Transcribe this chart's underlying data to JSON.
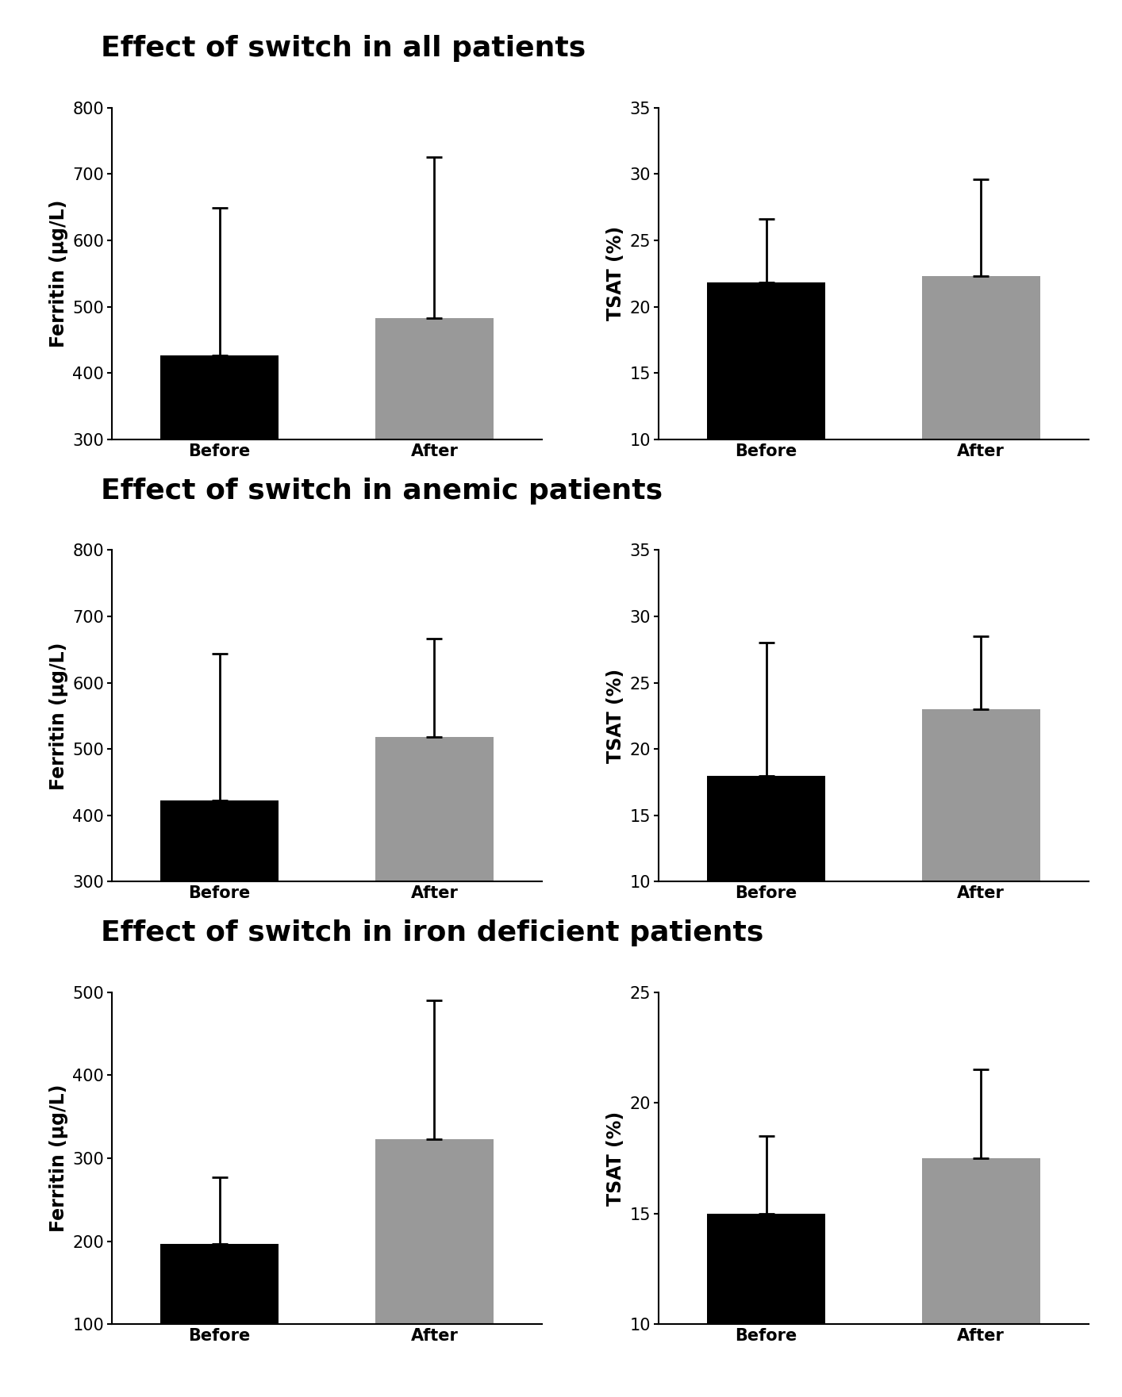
{
  "rows": [
    {
      "title": "Effect of switch in all patients",
      "panels": [
        {
          "ylabel": "Ferritin (µg/L)",
          "ylim": [
            300,
            800
          ],
          "yticks": [
            300,
            400,
            500,
            600,
            700,
            800
          ],
          "bars": [
            {
              "label": "Before",
              "value": 427,
              "error_up": 222,
              "color": "#000000"
            },
            {
              "label": "After",
              "value": 483,
              "error_up": 242,
              "color": "#999999"
            }
          ]
        },
        {
          "ylabel": "TSAT (%)",
          "ylim": [
            10,
            35
          ],
          "yticks": [
            10,
            15,
            20,
            25,
            30,
            35
          ],
          "bars": [
            {
              "label": "Before",
              "value": 21.8,
              "error_up": 4.8,
              "color": "#000000"
            },
            {
              "label": "After",
              "value": 22.3,
              "error_up": 7.3,
              "color": "#999999"
            }
          ]
        }
      ]
    },
    {
      "title": "Effect of switch in anemic patients",
      "panels": [
        {
          "ylabel": "Ferritin (µg/L)",
          "ylim": [
            300,
            800
          ],
          "yticks": [
            300,
            400,
            500,
            600,
            700,
            800
          ],
          "bars": [
            {
              "label": "Before",
              "value": 422,
              "error_up": 222,
              "color": "#000000"
            },
            {
              "label": "After",
              "value": 518,
              "error_up": 148,
              "color": "#999999"
            }
          ]
        },
        {
          "ylabel": "TSAT (%)",
          "ylim": [
            10,
            35
          ],
          "yticks": [
            10,
            15,
            20,
            25,
            30,
            35
          ],
          "bars": [
            {
              "label": "Before",
              "value": 18.0,
              "error_up": 10.0,
              "color": "#000000"
            },
            {
              "label": "After",
              "value": 23.0,
              "error_up": 5.5,
              "color": "#999999"
            }
          ]
        }
      ]
    },
    {
      "title": "Effect of switch in iron deficient patients",
      "panels": [
        {
          "ylabel": "Ferritin (µg/L)",
          "ylim": [
            100,
            500
          ],
          "yticks": [
            100,
            200,
            300,
            400,
            500
          ],
          "bars": [
            {
              "label": "Before",
              "value": 197,
              "error_up": 80,
              "color": "#000000"
            },
            {
              "label": "After",
              "value": 323,
              "error_up": 167,
              "color": "#999999"
            }
          ]
        },
        {
          "ylabel": "TSAT (%)",
          "ylim": [
            10,
            25
          ],
          "yticks": [
            10,
            15,
            20,
            25
          ],
          "bars": [
            {
              "label": "Before",
              "value": 15.0,
              "error_up": 3.5,
              "color": "#000000"
            },
            {
              "label": "After",
              "value": 17.5,
              "error_up": 4.0,
              "color": "#999999"
            }
          ]
        }
      ]
    }
  ],
  "background_color": "#ffffff",
  "title_fontsize": 26,
  "axis_label_fontsize": 17,
  "tick_fontsize": 15,
  "bar_width": 0.55,
  "capsize": 7,
  "error_linewidth": 2.0
}
